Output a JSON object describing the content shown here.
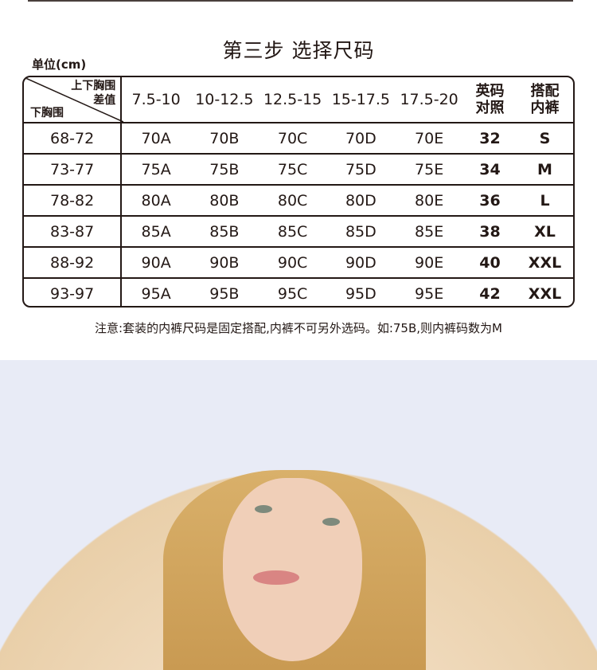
{
  "title": "第三步  选择尺码",
  "unit": "单位(cm)",
  "table": {
    "corner_top": [
      "上下胸围",
      "差值"
    ],
    "corner_bottom": "下胸围",
    "columns": [
      "7.5-10",
      "10-12.5",
      "12.5-15",
      "15-17.5",
      "17.5-20"
    ],
    "col_uk": [
      "英码",
      "对照"
    ],
    "col_panty": [
      "搭配",
      "内裤"
    ],
    "rows": [
      {
        "under": "68-72",
        "sizes": [
          "70A",
          "70B",
          "70C",
          "70D",
          "70E"
        ],
        "uk": "32",
        "panty": "S"
      },
      {
        "under": "73-77",
        "sizes": [
          "75A",
          "75B",
          "75C",
          "75D",
          "75E"
        ],
        "uk": "34",
        "panty": "M"
      },
      {
        "under": "78-82",
        "sizes": [
          "80A",
          "80B",
          "80C",
          "80D",
          "80E"
        ],
        "uk": "36",
        "panty": "L"
      },
      {
        "under": "83-87",
        "sizes": [
          "85A",
          "85B",
          "85C",
          "85D",
          "85E"
        ],
        "uk": "38",
        "panty": "XL"
      },
      {
        "under": "88-92",
        "sizes": [
          "90A",
          "90B",
          "90C",
          "90D",
          "90E"
        ],
        "uk": "40",
        "panty": "XXL"
      },
      {
        "under": "93-97",
        "sizes": [
          "95A",
          "95B",
          "95C",
          "95D",
          "95E"
        ],
        "uk": "42",
        "panty": "XXL"
      }
    ]
  },
  "note": "注意:套装的内裤尺码是固定搭配,内裤不可另外选码。如:75B,则内裤码数为M",
  "colors": {
    "text": "#231815",
    "lower_bg": "#e8ebf6"
  }
}
